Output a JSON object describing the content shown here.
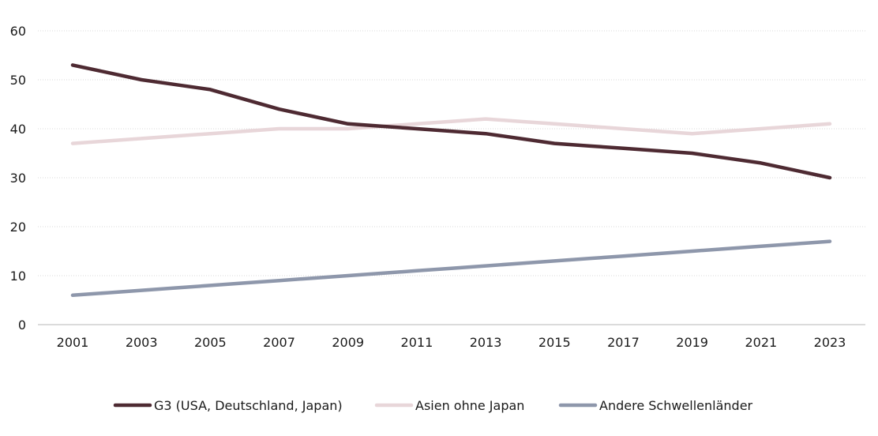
{
  "chart_data": {
    "type": "line",
    "title": "",
    "xlabel": "",
    "ylabel": "",
    "x": [
      2001,
      2002,
      2003,
      2004,
      2005,
      2006,
      2007,
      2008,
      2009,
      2010,
      2011,
      2012,
      2013,
      2014,
      2015,
      2016,
      2017,
      2018,
      2019,
      2020,
      2021,
      2022,
      2023
    ],
    "x_tick_labels": [
      "2001",
      "2003",
      "2005",
      "2007",
      "2009",
      "2011",
      "2013",
      "2015",
      "2017",
      "2019",
      "2021",
      "2023"
    ],
    "y_tick_labels": [
      "0",
      "10",
      "20",
      "30",
      "40",
      "50",
      "60"
    ],
    "ylim": [
      0,
      60
    ],
    "grid": "horizontal dotted",
    "legend_position": "bottom",
    "series": [
      {
        "name": "G3 (USA, Deutschland, Japan)",
        "color": "#4e2a32",
        "values": [
          53,
          51.5,
          50,
          49,
          48,
          46,
          44,
          42.5,
          41,
          40.5,
          40,
          39.5,
          39,
          38,
          37,
          36.5,
          36,
          35.5,
          35,
          34,
          33,
          31.5,
          30
        ]
      },
      {
        "name": "Asien ohne Japan",
        "color": "#e8d6d9",
        "values": [
          37,
          37.5,
          38,
          38.5,
          39,
          39.5,
          40,
          40,
          40,
          40.5,
          41,
          41.5,
          42,
          41.5,
          41,
          40.5,
          40,
          39.5,
          39,
          39.5,
          40,
          40.5,
          41
        ]
      },
      {
        "name": "Andere Schwellenländer",
        "color": "#8e97ab",
        "values": [
          6,
          6.5,
          7,
          7.5,
          8,
          8.5,
          9,
          9.5,
          10,
          10.5,
          11,
          11.5,
          12,
          12.5,
          13,
          13.5,
          14,
          14.5,
          15,
          15.5,
          16,
          16.5,
          17
        ]
      }
    ]
  }
}
